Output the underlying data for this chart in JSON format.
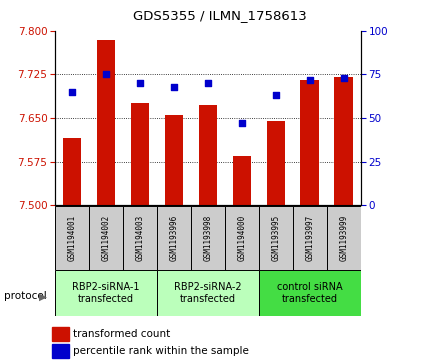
{
  "title": "GDS5355 / ILMN_1758613",
  "samples": [
    "GSM1194001",
    "GSM1194002",
    "GSM1194003",
    "GSM1193996",
    "GSM1193998",
    "GSM1194000",
    "GSM1193995",
    "GSM1193997",
    "GSM1193999"
  ],
  "bar_values": [
    7.615,
    7.785,
    7.675,
    7.655,
    7.672,
    7.585,
    7.645,
    7.715,
    7.72
  ],
  "dot_values": [
    65,
    75,
    70,
    68,
    70,
    47,
    63,
    72,
    73
  ],
  "ylim_left": [
    7.5,
    7.8
  ],
  "ylim_right": [
    0,
    100
  ],
  "yticks_left": [
    7.5,
    7.575,
    7.65,
    7.725,
    7.8
  ],
  "yticks_right": [
    0,
    25,
    50,
    75,
    100
  ],
  "bar_color": "#cc1100",
  "dot_color": "#0000cc",
  "bar_bottom": 7.5,
  "groups": [
    {
      "label": "RBP2-siRNA-1\ntransfected",
      "indices": [
        0,
        1,
        2
      ],
      "color": "#bbffbb"
    },
    {
      "label": "RBP2-siRNA-2\ntransfected",
      "indices": [
        3,
        4,
        5
      ],
      "color": "#bbffbb"
    },
    {
      "label": "control siRNA\ntransfected",
      "indices": [
        6,
        7,
        8
      ],
      "color": "#44dd44"
    }
  ],
  "legend_bar_label": "transformed count",
  "legend_dot_label": "percentile rank within the sample",
  "protocol_label": "protocol",
  "sample_bg": "#cccccc",
  "title_fontsize": 9.5,
  "tick_fontsize": 7.5,
  "sample_fontsize": 5.5,
  "group_fontsize": 7.0,
  "legend_fontsize": 7.5
}
